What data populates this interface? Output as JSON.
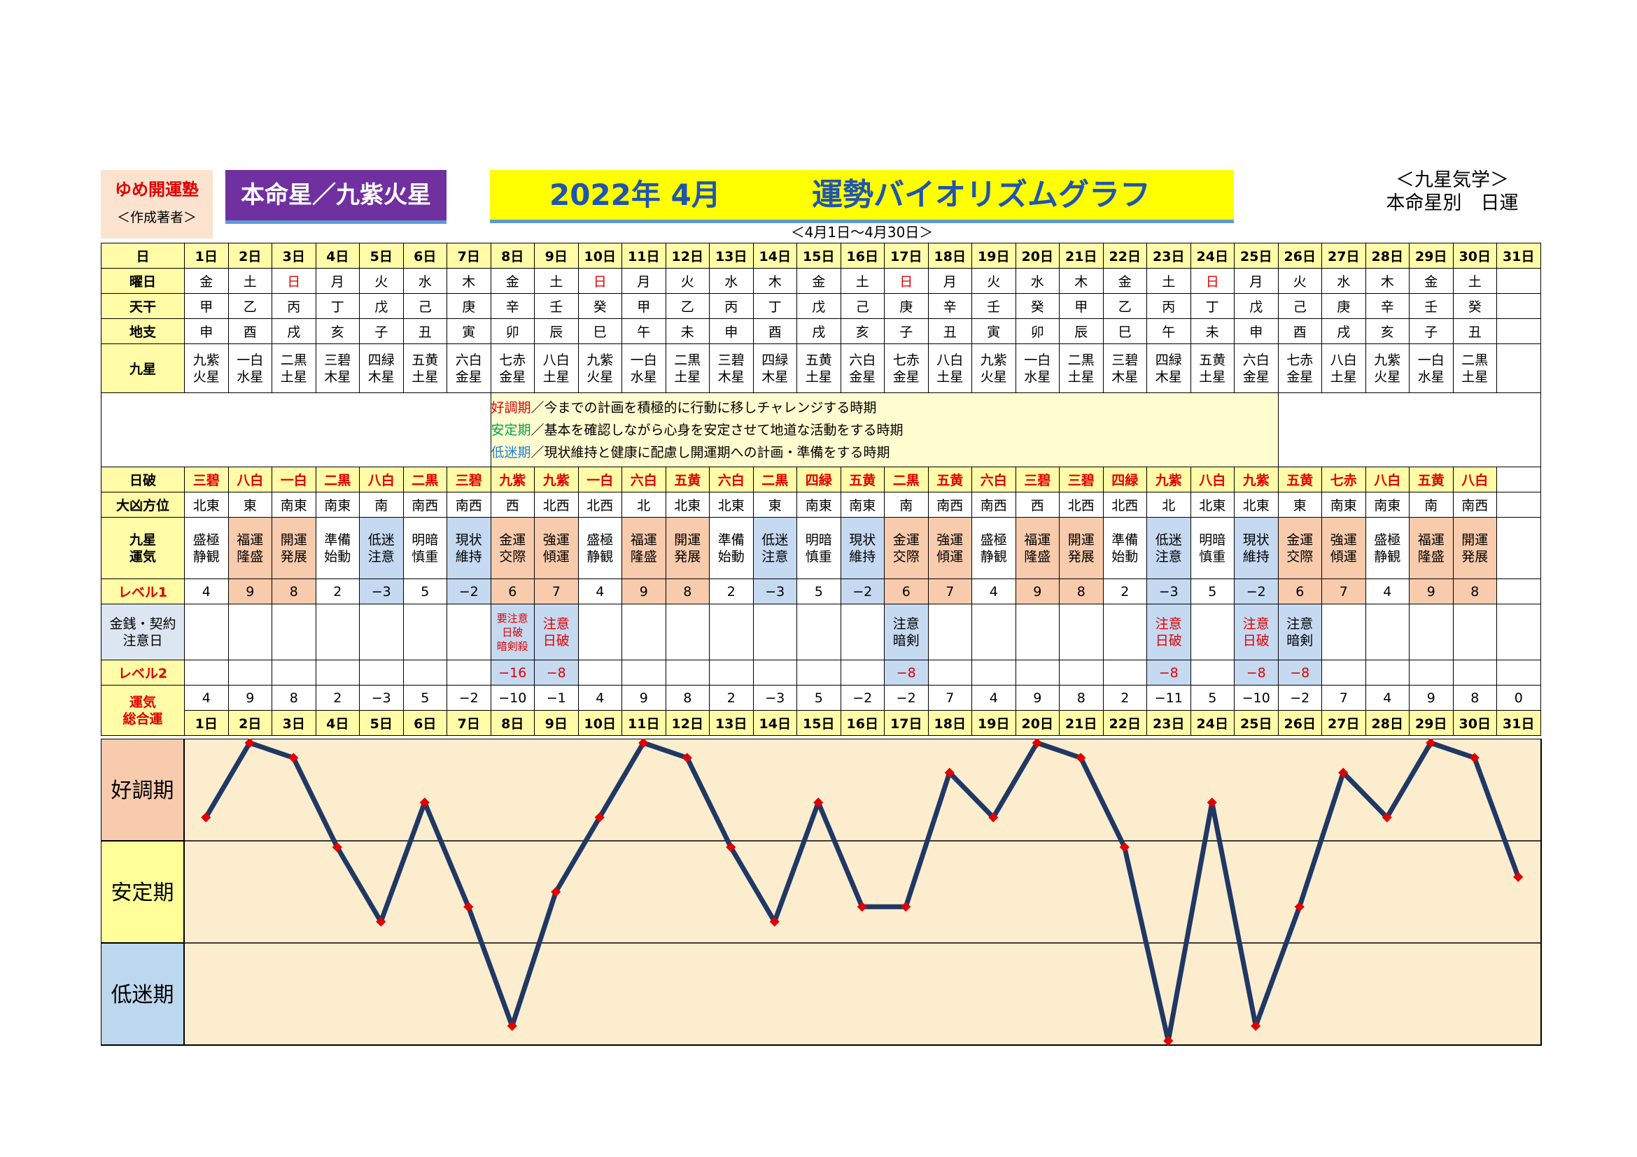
{
  "header": {
    "school_name": "ゆめ開運塾",
    "author_label": "＜作成著者＞",
    "honmeisei": "本命星／九紫火星",
    "title_date": "2022年 4月",
    "title_main": "運勢バイオリズムグラフ",
    "date_range": "＜4月1日～4月30日＞",
    "category_line1": "＜九星気学＞",
    "category_line2": "本命星別　日運"
  },
  "row_labels": {
    "day": "日",
    "weekday": "曜日",
    "tenkan": "天干",
    "chishi": "地支",
    "kyusei": "九星",
    "nippa": "日破",
    "daikyo": "大凶方位",
    "unki": "九星\n運気",
    "level1": "レベル1",
    "money": "金銭・契約\n注意日",
    "level2": "レベル2",
    "total": "運気\n総合運"
  },
  "legend": {
    "l1_key": "好調期",
    "l1_text": "／今までの計画を積極的に行動に移しチャレンジする時期",
    "l2_key": "安定期",
    "l2_text": "／基本を確認しながら心身を安定させて地道な活動をする時期",
    "l3_key": "低迷期",
    "l3_text": "／現状維持と健康に配慮し開運期への計画・準備をする時期"
  },
  "bands": [
    "好調期",
    "安定期",
    "低迷期"
  ],
  "colors": {
    "line": "#1f3864",
    "point": "#e00000",
    "good": "#f8cbad",
    "stable": "#ffff99",
    "low": "#bdd7ee",
    "plot_bg": "#fdedcf"
  },
  "days": [
    "1日",
    "2日",
    "3日",
    "4日",
    "5日",
    "6日",
    "7日",
    "8日",
    "9日",
    "10日",
    "11日",
    "12日",
    "13日",
    "14日",
    "15日",
    "16日",
    "17日",
    "18日",
    "19日",
    "20日",
    "21日",
    "22日",
    "23日",
    "24日",
    "25日",
    "26日",
    "27日",
    "28日",
    "29日",
    "30日",
    "31日"
  ],
  "weekdays": [
    "金",
    "土",
    "日",
    "月",
    "火",
    "水",
    "木",
    "金",
    "土",
    "日",
    "月",
    "火",
    "水",
    "木",
    "金",
    "土",
    "日",
    "月",
    "火",
    "水",
    "木",
    "金",
    "土",
    "日",
    "月",
    "火",
    "水",
    "木",
    "金",
    "土",
    ""
  ],
  "tenkan": [
    "甲",
    "乙",
    "丙",
    "丁",
    "戊",
    "己",
    "庚",
    "辛",
    "壬",
    "癸",
    "甲",
    "乙",
    "丙",
    "丁",
    "戊",
    "己",
    "庚",
    "辛",
    "壬",
    "癸",
    "甲",
    "乙",
    "丙",
    "丁",
    "戊",
    "己",
    "庚",
    "辛",
    "壬",
    "癸",
    ""
  ],
  "chishi": [
    "申",
    "酉",
    "戌",
    "亥",
    "子",
    "丑",
    "寅",
    "卯",
    "辰",
    "巳",
    "午",
    "未",
    "申",
    "酉",
    "戌",
    "亥",
    "子",
    "丑",
    "寅",
    "卯",
    "辰",
    "巳",
    "午",
    "未",
    "申",
    "酉",
    "戌",
    "亥",
    "子",
    "丑",
    ""
  ],
  "kyusei": [
    "九紫\n火星",
    "一白\n水星",
    "二黒\n土星",
    "三碧\n木星",
    "四緑\n木星",
    "五黄\n土星",
    "六白\n金星",
    "七赤\n金星",
    "八白\n土星",
    "九紫\n火星",
    "一白\n水星",
    "二黒\n土星",
    "三碧\n木星",
    "四緑\n木星",
    "五黄\n土星",
    "六白\n金星",
    "七赤\n金星",
    "八白\n土星",
    "九紫\n火星",
    "一白\n水星",
    "二黒\n土星",
    "三碧\n木星",
    "四緑\n木星",
    "五黄\n土星",
    "六白\n金星",
    "七赤\n金星",
    "八白\n土星",
    "九紫\n火星",
    "一白\n水星",
    "二黒\n土星",
    ""
  ],
  "nippa": [
    "三碧",
    "八白",
    "一白",
    "二黒",
    "八白",
    "二黒",
    "三碧",
    "九紫",
    "九紫",
    "一白",
    "六白",
    "五黄",
    "六白",
    "二黒",
    "四緑",
    "五黄",
    "二黒",
    "五黄",
    "六白",
    "三碧",
    "三碧",
    "四緑",
    "九紫",
    "八白",
    "九紫",
    "五黄",
    "七赤",
    "八白",
    "五黄",
    "八白",
    ""
  ],
  "daikyo": [
    "北東",
    "東",
    "南東",
    "南東",
    "南",
    "南西",
    "南西",
    "西",
    "北西",
    "北西",
    "北",
    "北東",
    "北東",
    "東",
    "南東",
    "南東",
    "南",
    "南西",
    "南西",
    "西",
    "北西",
    "北西",
    "北",
    "北東",
    "北東",
    "東",
    "南東",
    "南東",
    "南",
    "南西",
    ""
  ],
  "unki": [
    "盛極\n静観",
    "福運\n隆盛",
    "開運\n発展",
    "準備\n始動",
    "低迷\n注意",
    "明暗\n慎重",
    "現状\n維持",
    "金運\n交際",
    "強運\n傾運",
    "盛極\n静観",
    "福運\n隆盛",
    "開運\n発展",
    "準備\n始動",
    "低迷\n注意",
    "明暗\n慎重",
    "現状\n維持",
    "金運\n交際",
    "強運\n傾運",
    "盛極\n静観",
    "福運\n隆盛",
    "開運\n発展",
    "準備\n始動",
    "低迷\n注意",
    "明暗\n慎重",
    "現状\n維持",
    "金運\n交際",
    "強運\n傾運",
    "盛極\n静観",
    "福運\n隆盛",
    "開運\n発展",
    ""
  ],
  "level1": [
    "4",
    "9",
    "8",
    "2",
    "−3",
    "5",
    "−2",
    "6",
    "7",
    "4",
    "9",
    "8",
    "2",
    "−3",
    "5",
    "−2",
    "6",
    "7",
    "4",
    "9",
    "8",
    "2",
    "−3",
    "5",
    "−2",
    "6",
    "7",
    "4",
    "9",
    "8",
    ""
  ],
  "money": [
    "",
    "",
    "",
    "",
    "",
    "",
    "",
    "要注意\n日破\n暗剣殺",
    "注意\n日破",
    "",
    "",
    "",
    "",
    "",
    "",
    "",
    "注意\n暗剣",
    "",
    "",
    "",
    "",
    "",
    "注意\n日破",
    "",
    "注意\n日破",
    "注意\n暗剣",
    "",
    "",
    "",
    "",
    ""
  ],
  "level2": [
    "",
    "",
    "",
    "",
    "",
    "",
    "",
    "−16",
    "−8",
    "",
    "",
    "",
    "",
    "",
    "",
    "",
    "−8",
    "",
    "",
    "",
    "",
    "",
    "−8",
    "",
    "−8",
    "−8",
    "",
    "",
    "",
    "",
    ""
  ],
  "total": [
    "4",
    "9",
    "8",
    "2",
    "−3",
    "5",
    "−2",
    "−10",
    "−1",
    "4",
    "9",
    "8",
    "2",
    "−3",
    "5",
    "−2",
    "−2",
    "7",
    "4",
    "9",
    "8",
    "2",
    "−11",
    "5",
    "−10",
    "−2",
    "7",
    "4",
    "9",
    "8",
    "0"
  ],
  "chart_data": {
    "type": "line",
    "title": "運勢バイオリズムグラフ",
    "xlabel": "",
    "ylabel": "",
    "categories": [
      "1日",
      "2日",
      "3日",
      "4日",
      "5日",
      "6日",
      "7日",
      "8日",
      "9日",
      "10日",
      "11日",
      "12日",
      "13日",
      "14日",
      "15日",
      "16日",
      "17日",
      "18日",
      "19日",
      "20日",
      "21日",
      "22日",
      "23日",
      "24日",
      "25日",
      "26日",
      "27日",
      "28日",
      "29日",
      "30日",
      "31日"
    ],
    "values": [
      4,
      9,
      8,
      2,
      -3,
      5,
      -2,
      -10,
      -1,
      4,
      9,
      8,
      2,
      -3,
      5,
      -2,
      -2,
      7,
      4,
      9,
      8,
      2,
      -11,
      5,
      -10,
      -2,
      7,
      4,
      9,
      8,
      0
    ],
    "ylim": [
      -11,
      9
    ],
    "bands": [
      "好調期",
      "安定期",
      "低迷期"
    ],
    "grid": false
  }
}
